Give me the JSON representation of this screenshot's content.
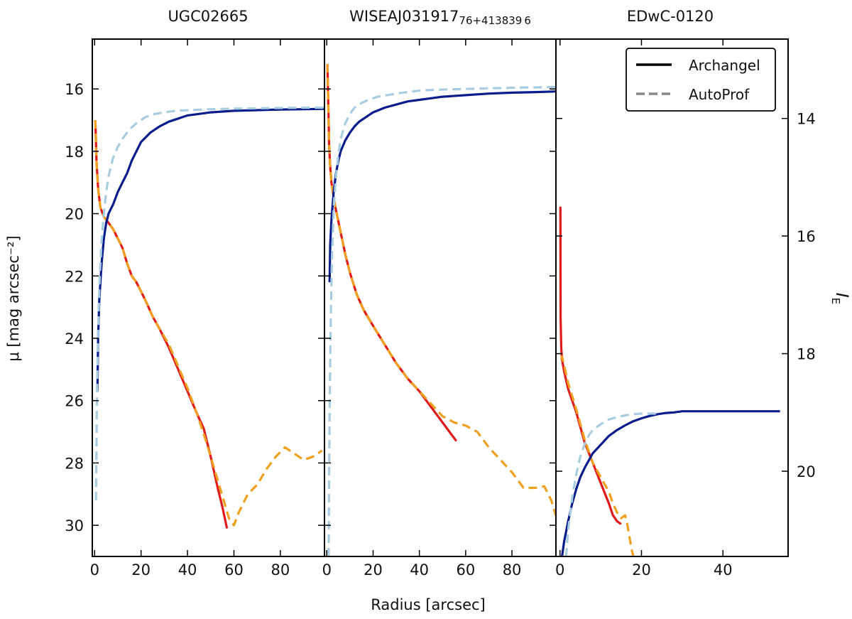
{
  "figure": {
    "xlabel": "Radius [arcsec]",
    "ylabel_left": "μ [mag arcsec⁻²]",
    "ylabel_right": "I_E",
    "ylabel_right_main": "I",
    "ylabel_right_sub": "E",
    "colors": {
      "archangel_outer": "#e01b1b",
      "autoprof_outer": "#f0a020",
      "archangel_cum": "#0b1c8c",
      "autoprof_cum": "#a9cde0"
    }
  },
  "legend": {
    "position": "top-right",
    "items": [
      {
        "label": "Archangel",
        "style": "solid"
      },
      {
        "label": "AutoProf",
        "style": "dashed"
      }
    ]
  },
  "chart_data": [
    {
      "type": "line",
      "title": "UGC02665",
      "xlabel": "Radius [arcsec]",
      "ylabel": "μ [mag arcsec⁻²]",
      "xlim": [
        -1,
        99
      ],
      "ylim": [
        31,
        14.4
      ],
      "xticks": [
        0,
        20,
        40,
        60,
        80
      ],
      "yticks": [
        16,
        18,
        20,
        22,
        24,
        26,
        28,
        30
      ],
      "series": [
        {
          "name": "Archangel surface brightness",
          "style": "solid",
          "color": "#e01b1b",
          "x": [
            0.3,
            0.8,
            1.5,
            2.5,
            4,
            6,
            8,
            10,
            12,
            14,
            16,
            18,
            20,
            22,
            25,
            28,
            32,
            36,
            40,
            44,
            47,
            50,
            53,
            55,
            57
          ],
          "y": [
            17.0,
            18.3,
            19.2,
            19.8,
            20.1,
            20.3,
            20.5,
            20.8,
            21.1,
            21.6,
            22.0,
            22.2,
            22.5,
            22.8,
            23.3,
            23.7,
            24.3,
            25.0,
            25.7,
            26.4,
            26.9,
            27.8,
            28.8,
            29.4,
            30.1
          ]
        },
        {
          "name": "AutoProf surface brightness",
          "style": "dashed",
          "color": "#f0a020",
          "x": [
            0.3,
            0.8,
            1.5,
            2.5,
            4,
            6,
            8,
            10,
            12,
            14,
            16,
            18,
            20,
            22,
            25,
            28,
            32,
            36,
            40,
            44,
            48,
            52,
            56,
            58,
            60,
            62,
            66,
            70,
            74,
            78,
            82,
            86,
            90,
            94,
            98
          ],
          "y": [
            17.0,
            18.3,
            19.2,
            19.8,
            20.1,
            20.3,
            20.5,
            20.8,
            21.1,
            21.6,
            22.0,
            22.2,
            22.5,
            22.8,
            23.3,
            23.7,
            24.2,
            24.9,
            25.6,
            26.4,
            27.3,
            28.3,
            29.3,
            29.8,
            30.0,
            29.6,
            29.0,
            28.7,
            28.2,
            27.8,
            27.5,
            27.7,
            27.9,
            27.8,
            27.6
          ]
        },
        {
          "name": "Archangel cumulative magnitude",
          "style": "solid",
          "color": "#0b1c8c",
          "x": [
            1.2,
            1.5,
            2,
            3,
            4,
            5,
            6,
            8,
            10,
            12,
            14,
            16,
            18,
            20,
            24,
            28,
            32,
            36,
            40,
            45,
            50,
            60,
            70,
            80,
            90,
            99
          ],
          "y": [
            25.7,
            24.0,
            22.8,
            21.6,
            20.8,
            20.3,
            20.0,
            19.7,
            19.3,
            19.0,
            18.7,
            18.3,
            18.0,
            17.7,
            17.4,
            17.2,
            17.05,
            16.95,
            16.85,
            16.8,
            16.75,
            16.7,
            16.68,
            16.66,
            16.65,
            16.64
          ]
        },
        {
          "name": "AutoProf cumulative magnitude",
          "style": "dashed",
          "color": "#a9cde0",
          "x": [
            0.6,
            0.8,
            1,
            1.3,
            1.7,
            2.2,
            3,
            4,
            5,
            6,
            8,
            10,
            12,
            15,
            18,
            22,
            26,
            30,
            35,
            40,
            50,
            60,
            70,
            80,
            90,
            99
          ],
          "y": [
            29.2,
            27.5,
            26.0,
            24.6,
            23.3,
            22.0,
            20.9,
            20.0,
            19.3,
            18.8,
            18.2,
            17.85,
            17.6,
            17.3,
            17.1,
            16.9,
            16.8,
            16.75,
            16.7,
            16.68,
            16.65,
            16.63,
            16.62,
            16.61,
            16.6,
            16.6
          ]
        }
      ]
    },
    {
      "type": "line",
      "title": "WISEAJ031917_76+413839_6",
      "title_main": "WISEAJ031917",
      "title_sub1": "76+413839",
      "title_sub2": "6",
      "xlabel": "Radius [arcsec]",
      "ylim": [
        31,
        14.4
      ],
      "xlim": [
        -1,
        99
      ],
      "xticks": [
        0,
        20,
        40,
        60,
        80
      ],
      "series": [
        {
          "name": "Archangel surface brightness",
          "style": "solid",
          "color": "#e01b1b",
          "x": [
            0.3,
            0.5,
            0.8,
            1,
            1.5,
            2,
            3,
            4,
            6,
            8,
            10,
            13,
            16,
            20,
            25,
            30,
            35,
            40,
            45,
            50,
            53,
            56
          ],
          "y": [
            15.2,
            16.0,
            17.0,
            17.8,
            18.5,
            19.0,
            19.5,
            19.9,
            20.6,
            21.3,
            21.9,
            22.6,
            23.1,
            23.6,
            24.2,
            24.8,
            25.3,
            25.7,
            26.2,
            26.7,
            27.0,
            27.3
          ]
        },
        {
          "name": "AutoProf surface brightness",
          "style": "dashed",
          "color": "#f0a020",
          "x": [
            0.3,
            0.5,
            0.8,
            1,
            1.5,
            2,
            3,
            4,
            6,
            8,
            10,
            13,
            16,
            20,
            25,
            30,
            35,
            40,
            45,
            50,
            55,
            60,
            65,
            70,
            75,
            80,
            85,
            90,
            94,
            97,
            99
          ],
          "y": [
            15.2,
            16.0,
            17.0,
            17.8,
            18.5,
            19.0,
            19.5,
            19.9,
            20.6,
            21.3,
            21.9,
            22.6,
            23.1,
            23.6,
            24.2,
            24.8,
            25.3,
            25.7,
            26.1,
            26.5,
            26.7,
            26.8,
            27.0,
            27.5,
            27.9,
            28.3,
            28.8,
            28.8,
            28.75,
            29.2,
            29.7
          ]
        },
        {
          "name": "Archangel cumulative magnitude",
          "style": "solid",
          "color": "#0b1c8c",
          "x": [
            1.2,
            1.5,
            2,
            3,
            4,
            5,
            6,
            8,
            10,
            12,
            14,
            16,
            20,
            25,
            30,
            35,
            40,
            50,
            60,
            70,
            80,
            90,
            99
          ],
          "y": [
            22.2,
            21.0,
            20.2,
            19.3,
            18.7,
            18.3,
            18.0,
            17.65,
            17.4,
            17.2,
            17.05,
            16.95,
            16.75,
            16.6,
            16.5,
            16.4,
            16.35,
            16.25,
            16.2,
            16.15,
            16.12,
            16.1,
            16.08
          ]
        },
        {
          "name": "AutoProf cumulative magnitude",
          "style": "dashed",
          "color": "#a9cde0",
          "x": [
            0.8,
            1,
            1.3,
            1.7,
            2.2,
            3,
            4,
            5,
            6,
            8,
            10,
            12,
            15,
            18,
            22,
            26,
            30,
            35,
            40,
            50,
            60,
            70,
            80,
            90,
            99
          ],
          "y": [
            31.0,
            28.5,
            25.8,
            23.5,
            21.5,
            19.8,
            18.8,
            18.1,
            17.6,
            17.1,
            16.8,
            16.6,
            16.45,
            16.35,
            16.25,
            16.2,
            16.15,
            16.1,
            16.05,
            16.02,
            16.0,
            15.98,
            15.96,
            15.95,
            15.94
          ]
        }
      ]
    },
    {
      "type": "line",
      "title": "EDwC-0120",
      "xlabel": "Radius [arcsec]",
      "ylabel_right": "I_E",
      "xlim": [
        -1,
        56
      ],
      "ylim": [
        21.45,
        12.65
      ],
      "xticks": [
        0,
        20,
        40
      ],
      "yticks": [
        14,
        16,
        18,
        20
      ],
      "series": [
        {
          "name": "Archangel surface brightness",
          "style": "solid",
          "color": "#e01b1b",
          "x": [
            0.1,
            0.15,
            0.3,
            0.5,
            1,
            2,
            4,
            6,
            8,
            10,
            12,
            13,
            14,
            15
          ],
          "y": [
            15.5,
            17.4,
            17.9,
            18.1,
            18.3,
            18.6,
            19.0,
            19.5,
            19.85,
            20.2,
            20.55,
            20.75,
            20.85,
            20.9
          ]
        },
        {
          "name": "AutoProf surface brightness",
          "style": "dashed",
          "color": "#f0a020",
          "x": [
            0.3,
            0.5,
            1,
            2,
            4,
            6,
            8,
            10,
            12,
            13,
            14,
            15,
            16,
            16.5,
            17,
            17.5,
            18
          ],
          "y": [
            18.1,
            18.05,
            18.2,
            18.5,
            18.95,
            19.45,
            19.85,
            20.1,
            20.35,
            20.55,
            20.7,
            20.8,
            20.75,
            20.9,
            21.1,
            21.3,
            21.45
          ]
        },
        {
          "name": "Archangel cumulative magnitude",
          "style": "solid",
          "color": "#0b1c8c",
          "x": [
            0.5,
            1,
            2,
            3,
            4,
            5,
            6,
            8,
            10,
            12,
            14,
            16,
            18,
            20,
            22,
            24,
            26,
            28,
            30,
            35,
            40,
            45,
            50,
            54
          ],
          "y": [
            21.45,
            21.2,
            20.85,
            20.55,
            20.3,
            20.1,
            19.95,
            19.7,
            19.55,
            19.4,
            19.3,
            19.22,
            19.15,
            19.1,
            19.06,
            19.03,
            19.01,
            19.0,
            18.98,
            18.98,
            18.98,
            18.98,
            18.98,
            18.98
          ]
        },
        {
          "name": "AutoProf cumulative magnitude",
          "style": "dashed",
          "color": "#a9cde0",
          "x": [
            1.5,
            2,
            3,
            4,
            5,
            6,
            7,
            8,
            10,
            12,
            14,
            16,
            18,
            20,
            22,
            24
          ],
          "y": [
            21.45,
            21.0,
            20.45,
            20.05,
            19.75,
            19.55,
            19.4,
            19.3,
            19.2,
            19.12,
            19.08,
            19.05,
            19.03,
            19.02,
            19.02,
            19.02
          ]
        }
      ]
    }
  ]
}
